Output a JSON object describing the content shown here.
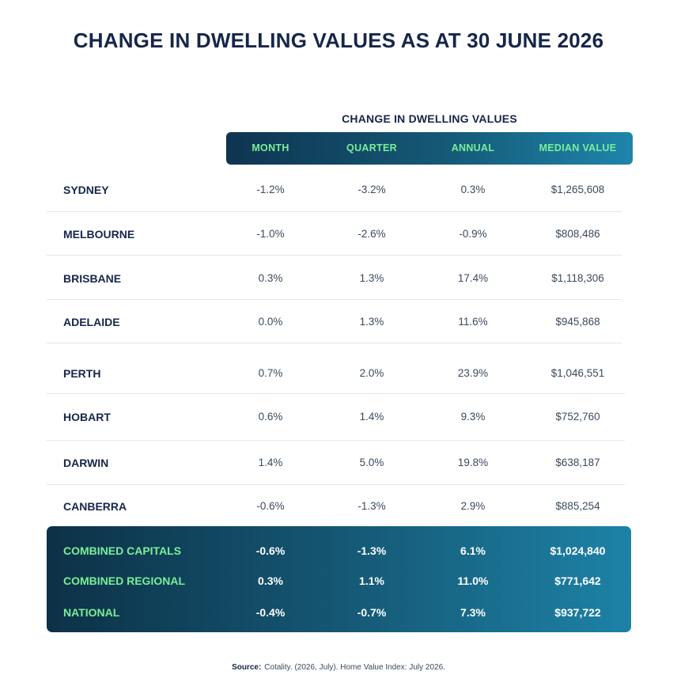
{
  "title": "CHANGE IN DWELLING VALUES AS AT 30 JUNE 2026",
  "group_label": "CHANGE IN DWELLING VALUES",
  "columns": [
    "MONTH",
    "QUARTER",
    "ANNUAL",
    "MEDIAN VALUE"
  ],
  "rows": [
    {
      "city": "SYDNEY",
      "month": "-1.2%",
      "quarter": "-3.2%",
      "annual": "0.3%",
      "median": "$1,265,608"
    },
    {
      "city": "MELBOURNE",
      "month": "-1.0%",
      "quarter": "-2.6%",
      "annual": "-0.9%",
      "median": "$808,486"
    },
    {
      "city": "BRISBANE",
      "month": "0.3%",
      "quarter": "1.3%",
      "annual": "17.4%",
      "median": "$1,118,306"
    },
    {
      "city": "ADELAIDE",
      "month": "0.0%",
      "quarter": "1.3%",
      "annual": "11.6%",
      "median": "$945,868"
    },
    {
      "city": "PERTH",
      "month": "0.7%",
      "quarter": "2.0%",
      "annual": "23.9%",
      "median": "$1,046,551"
    },
    {
      "city": "HOBART",
      "month": "0.6%",
      "quarter": "1.4%",
      "annual": "9.3%",
      "median": "$752,760"
    },
    {
      "city": "DARWIN",
      "month": "1.4%",
      "quarter": "5.0%",
      "annual": "19.8%",
      "median": "$638,187"
    },
    {
      "city": "CANBERRA",
      "month": "-0.6%",
      "quarter": "-1.3%",
      "annual": "2.9%",
      "median": "$885,254"
    }
  ],
  "summary": [
    {
      "label": "COMBINED CAPITALS",
      "month": "-0.6%",
      "quarter": "-1.3%",
      "annual": "6.1%",
      "median": "$1,024,840"
    },
    {
      "label": "COMBINED REGIONAL",
      "month": "0.3%",
      "quarter": "1.1%",
      "annual": "11.0%",
      "median": "$771,642"
    },
    {
      "label": "NATIONAL",
      "month": "-0.4%",
      "quarter": "-0.7%",
      "annual": "7.3%",
      "median": "$937,722"
    }
  ],
  "source": {
    "label": "Source:",
    "text": "Cotality. (2026, July). Home Value Index: July 2026."
  },
  "colors": {
    "heading": "#16264a",
    "accent_green": "#79ef98",
    "gradient_dark": "#0d3147",
    "gradient_light": "#1d82a6"
  }
}
